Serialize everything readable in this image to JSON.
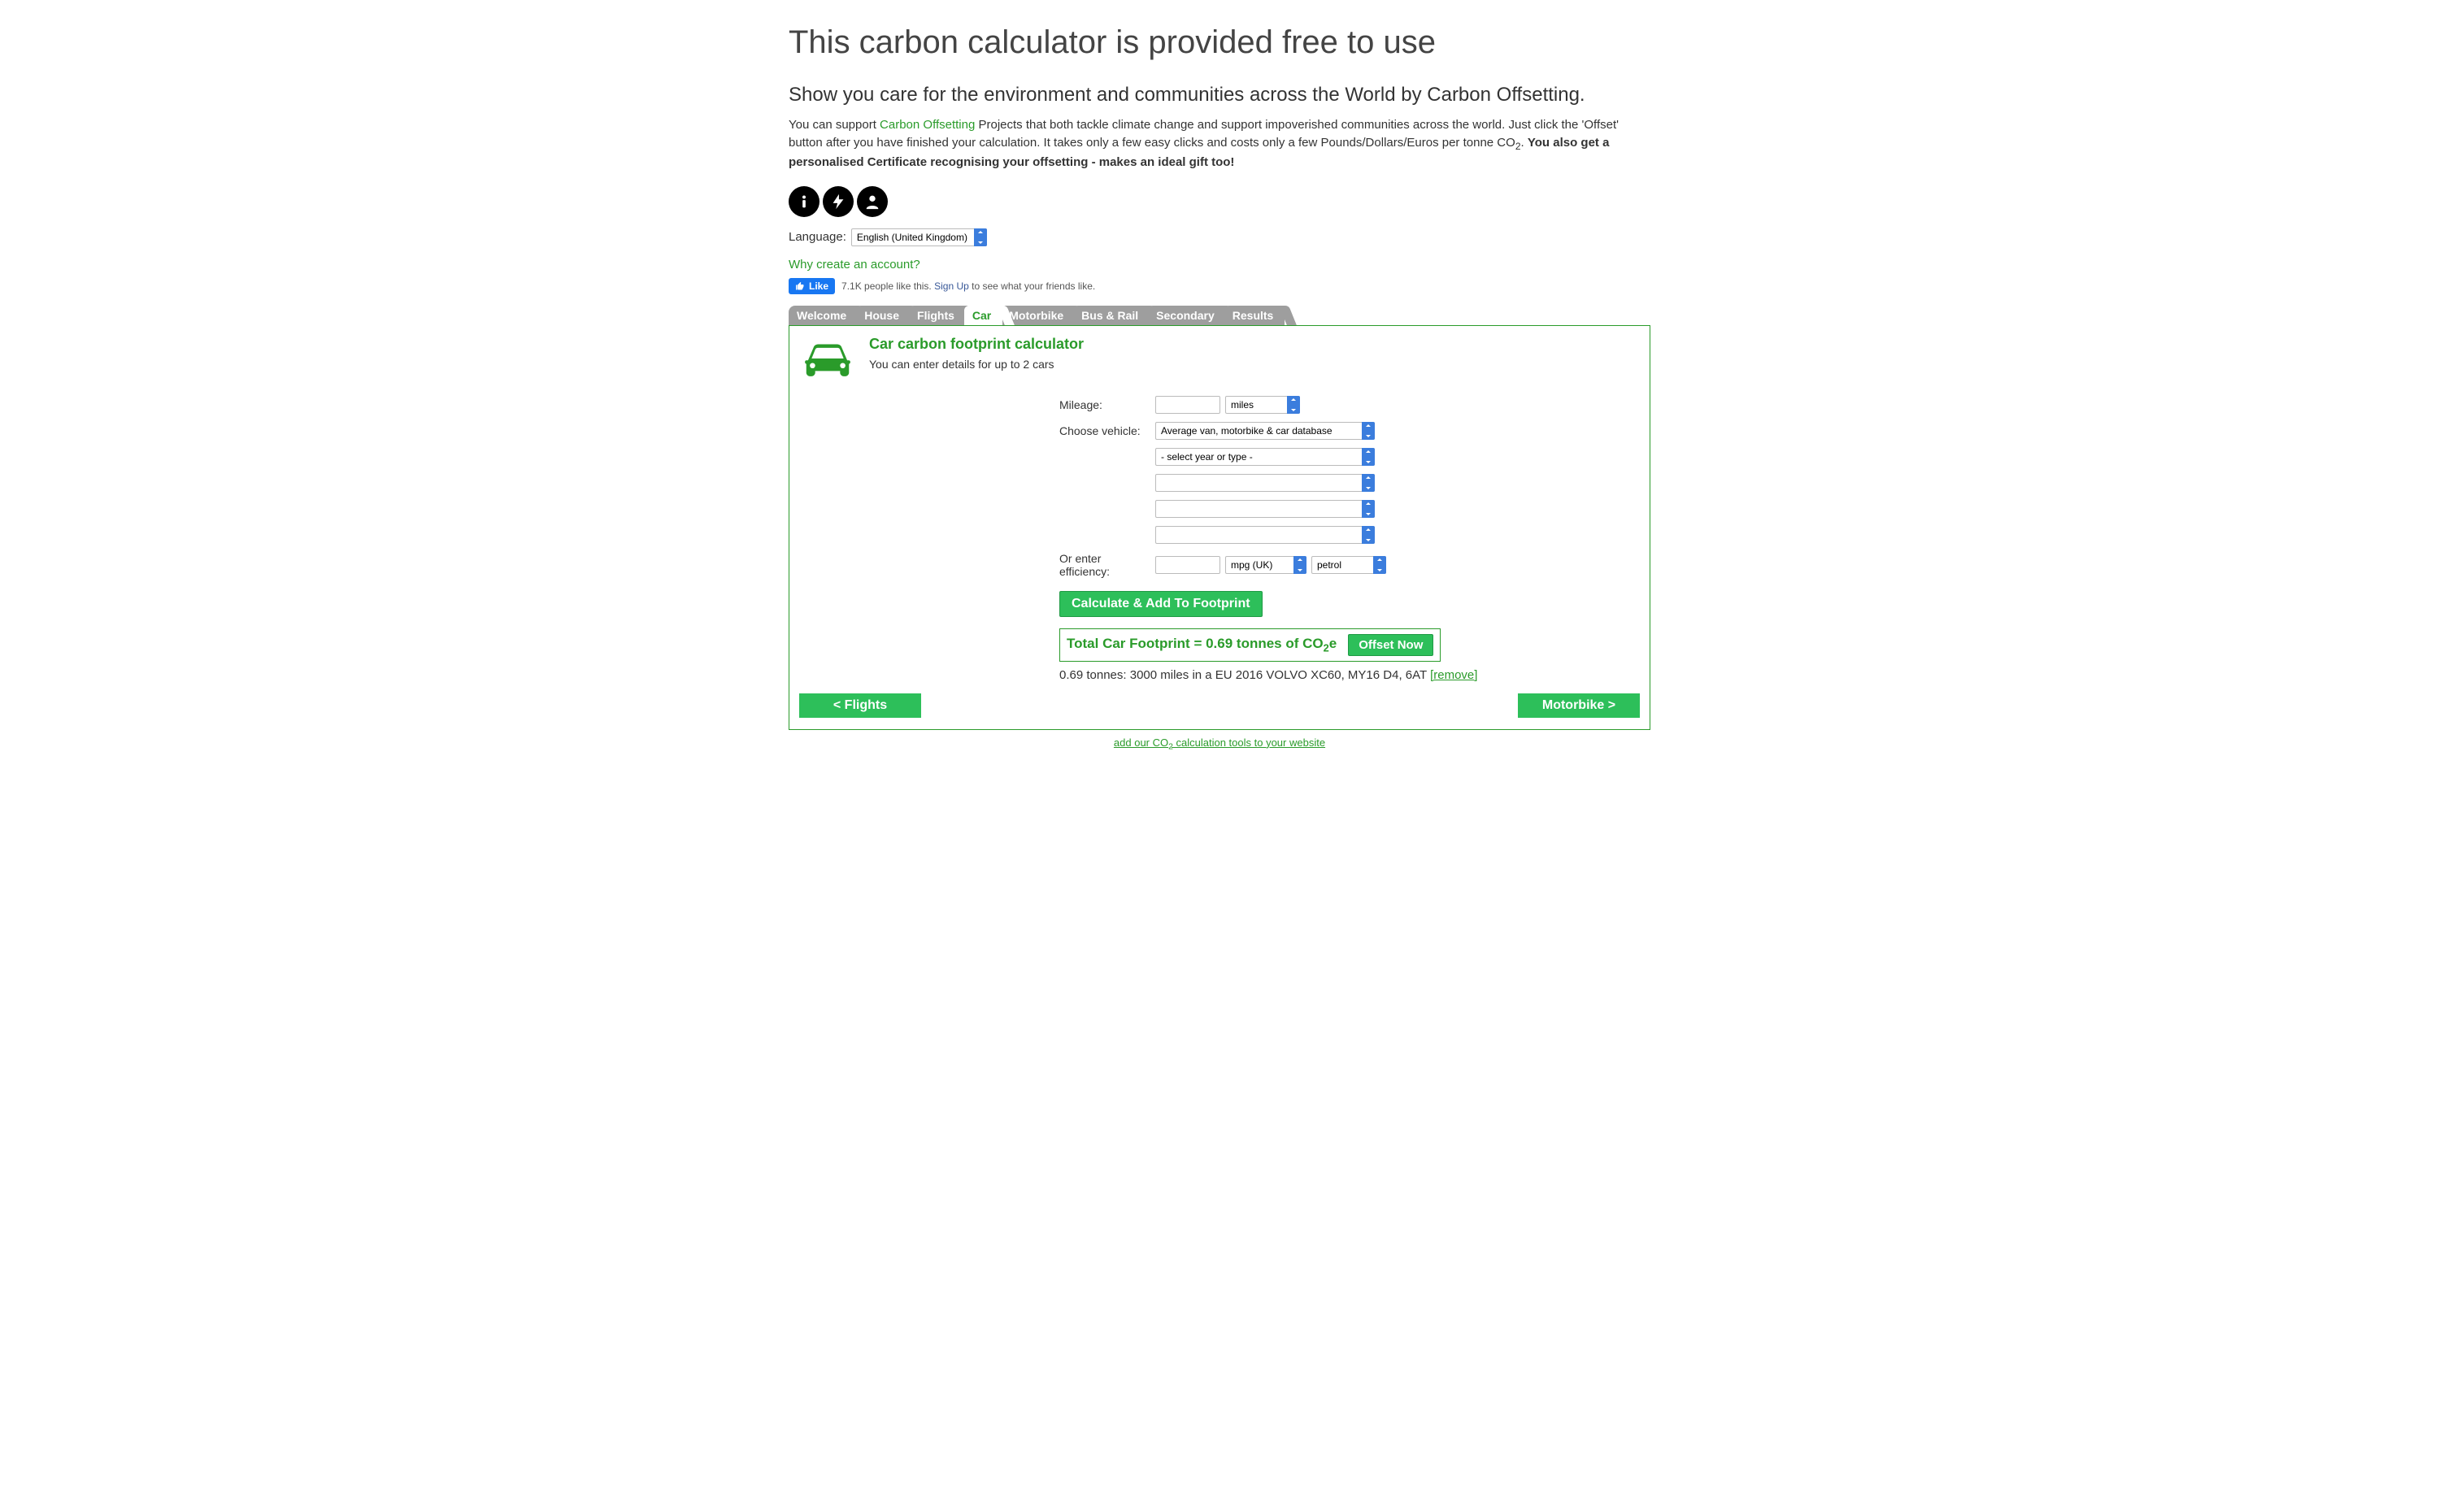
{
  "page_title": "This carbon calculator is provided free to use",
  "subheading": "Show you care for the environment and communities across the World by Carbon Offsetting.",
  "intro": {
    "pre_link": "You can support ",
    "link_text": "Carbon Offsetting",
    "post_link_1": " Projects that both tackle climate change and support impoverished communities across the world. Just click the 'Offset' button after you have finished your calculation. It takes only a few easy clicks and costs only a few Pounds/Dollars/Euros per tonne CO",
    "sub1": "2",
    "post_link_2": ". ",
    "bold": "You also get a personalised Certificate recognising your offsetting - makes an ideal gift too!"
  },
  "language": {
    "label": "Language:",
    "value": "English (United Kingdom)"
  },
  "why_link": "Why create an account?",
  "fb": {
    "like_label": "Like",
    "text_1": "7.1K people like this. ",
    "signup": "Sign Up",
    "text_2": " to see what your friends like."
  },
  "tabs": [
    "Welcome",
    "House",
    "Flights",
    "Car",
    "Motorbike",
    "Bus & Rail",
    "Secondary",
    "Results"
  ],
  "active_tab_index": 3,
  "panel": {
    "title": "Car carbon footprint calculator",
    "subtitle": "You can enter details for up to 2 cars"
  },
  "form": {
    "mileage_label": "Mileage:",
    "mileage_value": "",
    "mileage_unit": "miles",
    "vehicle_label": "Choose vehicle:",
    "vehicle_db": "Average van, motorbike & car database",
    "year_placeholder": "- select year or type -",
    "sel3": "",
    "sel4": "",
    "sel5": "",
    "efficiency_label": "Or enter efficiency:",
    "efficiency_value": "",
    "efficiency_unit": "mpg (UK)",
    "fuel": "petrol",
    "calc_button": "Calculate & Add To Footprint"
  },
  "total": {
    "text_pre": "Total Car Footprint = 0.69 tonnes of CO",
    "sub": "2",
    "text_post": "e",
    "offset_button": "Offset Now"
  },
  "detail": {
    "text": "0.69 tonnes: 3000 miles in a EU 2016 VOLVO XC60, MY16 D4, 6AT ",
    "remove": "[remove]"
  },
  "nav": {
    "prev": "< Flights",
    "next": "Motorbike >"
  },
  "bottom_link": {
    "pre": "add our CO",
    "sub": "2",
    "post": " calculation tools to your website"
  }
}
